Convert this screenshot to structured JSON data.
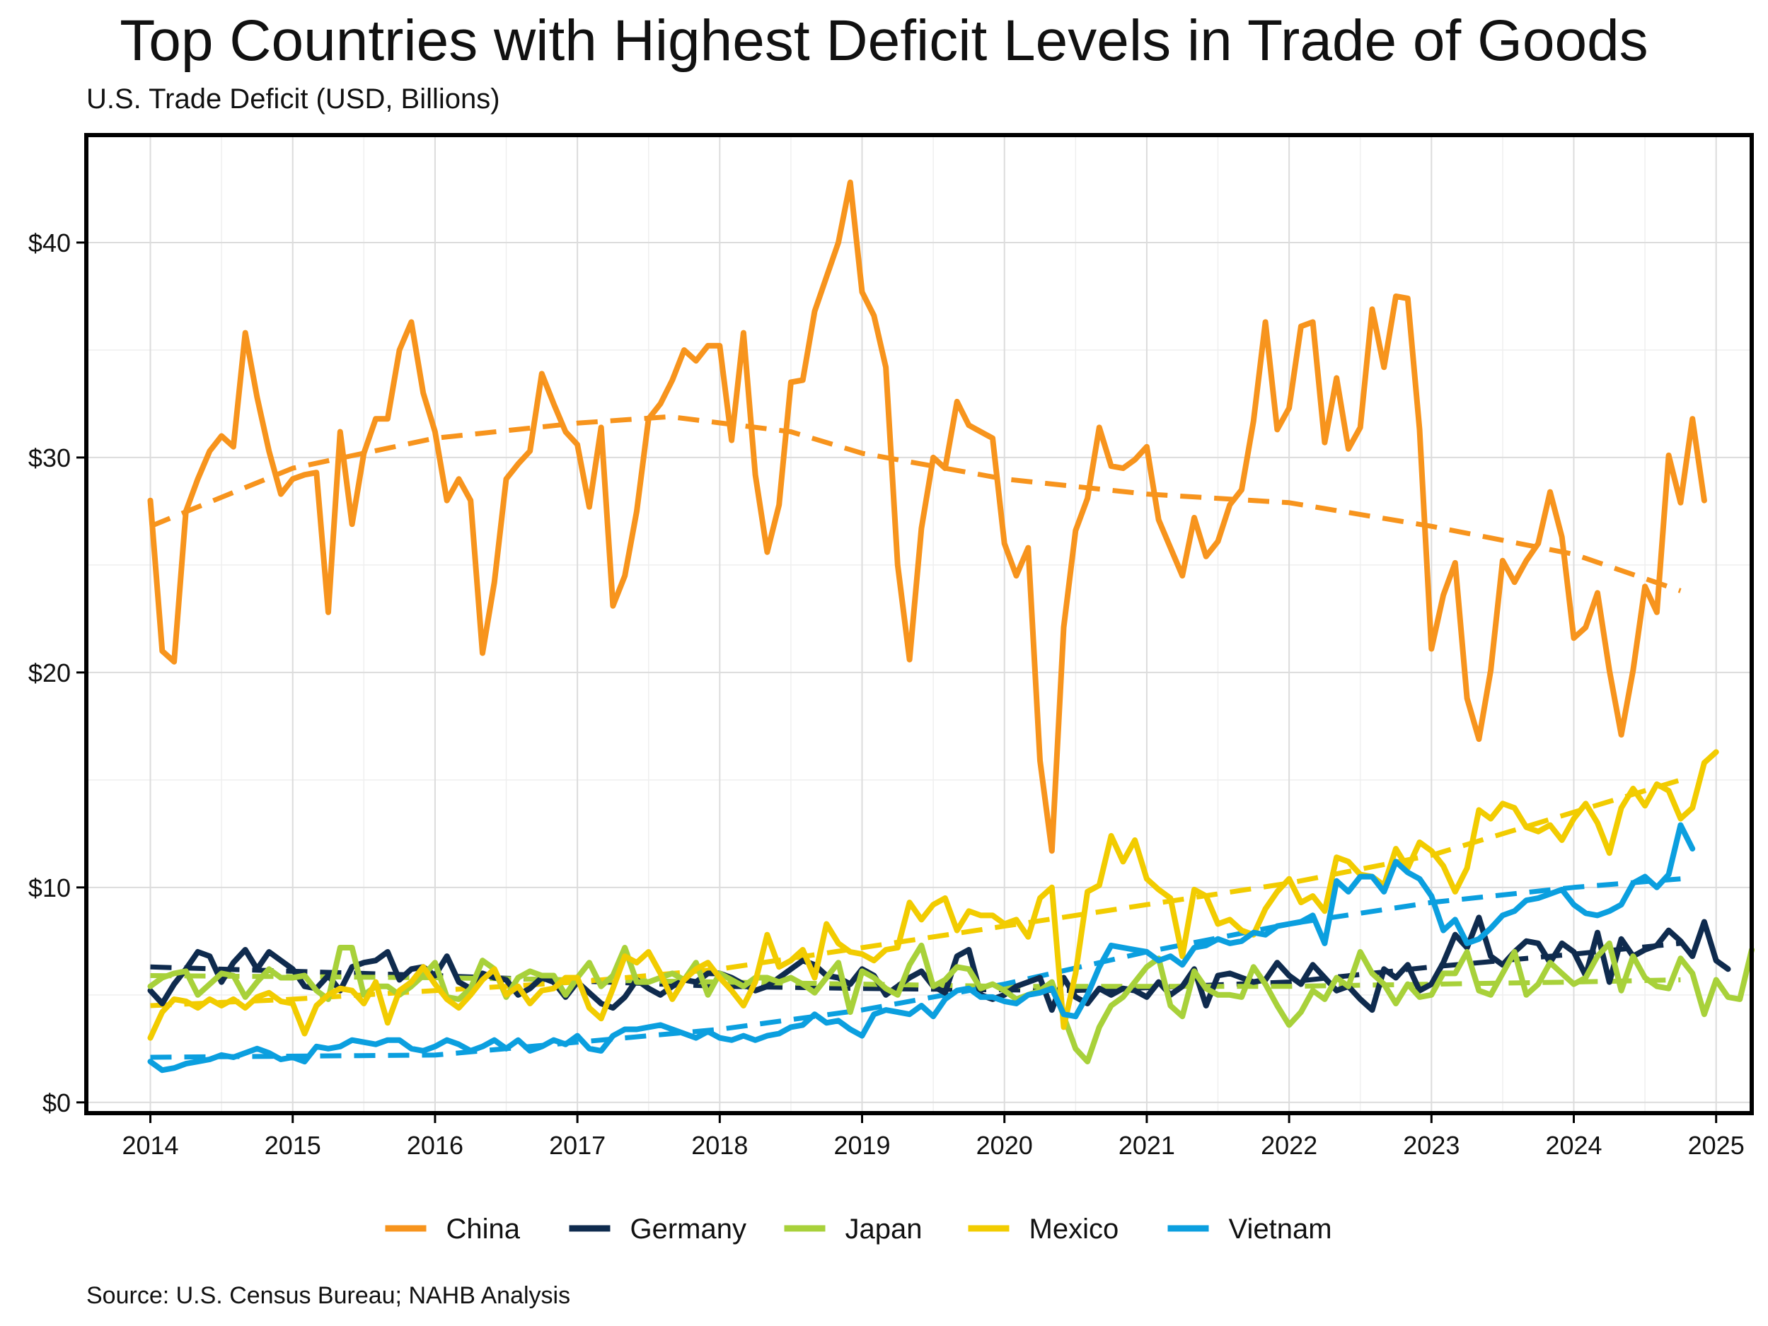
{
  "header": {
    "title": "Top Countries with Highest Deficit Levels in Trade of Goods",
    "subtitle": "U.S. Trade Deficit (USD, Billions)"
  },
  "footer": {
    "source": "Source: U.S. Census Bureau; NAHB Analysis"
  },
  "chart_data": {
    "type": "line",
    "title": "Top Countries with Highest Deficit Levels in Trade of Goods",
    "subtitle": "U.S. Trade Deficit (USD, Billions)",
    "xlim": [
      2013.55,
      2025.25
    ],
    "ylim": [
      -0.5,
      45
    ],
    "x_ticks": [
      2014,
      2015,
      2016,
      2017,
      2018,
      2019,
      2020,
      2021,
      2022,
      2023,
      2024,
      2025
    ],
    "x_tick_labels": [
      "2014",
      "2015",
      "2016",
      "2017",
      "2018",
      "2019",
      "2020",
      "2021",
      "2022",
      "2023",
      "2024",
      "2025"
    ],
    "y_ticks": [
      0,
      10,
      20,
      30,
      40
    ],
    "y_tick_labels": [
      "$0",
      "$10",
      "$20",
      "$30",
      "$40"
    ],
    "grid": true,
    "legend_position": "bottom",
    "series": [
      {
        "name": "China",
        "color": "#F7941D",
        "start": 2014,
        "step": 0.0833333,
        "values": [
          28.0,
          21.0,
          20.5,
          27.5,
          29.0,
          30.3,
          31.0,
          30.5,
          35.8,
          32.8,
          30.3,
          28.3,
          29.0,
          29.2,
          29.3,
          22.8,
          31.2,
          26.9,
          30.2,
          31.8,
          31.8,
          35.0,
          36.3,
          33.0,
          31.2,
          28.0,
          29.0,
          28.0,
          20.9,
          24.2,
          29.0,
          29.7,
          30.3,
          33.9,
          32.5,
          31.2,
          30.6,
          27.7,
          31.4,
          23.1,
          24.5,
          27.5,
          31.8,
          32.5,
          33.6,
          35.0,
          34.5,
          35.2,
          35.2,
          30.8,
          35.8,
          29.2,
          25.6,
          27.8,
          33.5,
          33.6,
          36.8,
          38.4,
          40.0,
          42.8,
          37.7,
          36.6,
          34.2,
          25.0,
          20.6,
          26.7,
          30.0,
          29.5,
          32.6,
          31.5,
          31.2,
          30.9,
          26.0,
          24.5,
          25.8,
          15.9,
          11.7,
          22.1,
          26.6,
          28.1,
          31.4,
          29.6,
          29.5,
          29.9,
          30.5,
          27.1,
          25.8,
          24.5,
          27.2,
          25.4,
          26.1,
          27.8,
          28.5,
          31.7,
          36.3,
          31.3,
          32.3,
          36.1,
          36.3,
          30.7,
          33.7,
          30.4,
          31.4,
          36.9,
          34.2,
          37.5,
          37.4,
          31.3,
          21.1,
          23.6,
          25.1,
          18.8,
          16.9,
          20.1,
          25.2,
          24.2,
          25.2,
          26.0,
          28.4,
          26.3,
          21.6,
          22.1,
          23.7,
          20.1,
          17.1,
          20.1,
          24.0,
          22.8,
          30.1,
          27.9,
          31.8,
          28.0
        ]
      },
      {
        "name": "Germany",
        "color": "#0F2B4E",
        "start": 2014,
        "step": 0.0833333,
        "values": [
          5.2,
          4.6,
          5.5,
          6.2,
          7.0,
          6.8,
          5.6,
          6.5,
          7.1,
          6.2,
          7.0,
          6.6,
          6.2,
          5.4,
          5.3,
          5.9,
          5.2,
          6.3,
          6.5,
          6.6,
          7.0,
          5.7,
          6.2,
          6.3,
          5.9,
          6.8,
          5.6,
          5.3,
          6.0,
          5.8,
          5.7,
          5.0,
          5.3,
          5.8,
          5.6,
          4.9,
          5.6,
          5.1,
          4.6,
          4.4,
          4.9,
          5.7,
          5.3,
          5.0,
          5.4,
          5.7,
          5.6,
          6.0,
          6.0,
          5.8,
          5.5,
          5.2,
          5.4,
          5.8,
          6.2,
          6.6,
          6.4,
          5.9,
          5.8,
          5.5,
          6.2,
          5.9,
          5.0,
          5.4,
          5.8,
          6.1,
          5.4,
          5.1,
          6.8,
          7.1,
          5.0,
          4.8,
          5.0,
          5.4,
          5.6,
          5.8,
          4.3,
          5.8,
          4.9,
          4.6,
          5.3,
          5.0,
          5.3,
          5.2,
          4.9,
          5.6,
          5.0,
          5.4,
          6.2,
          4.5,
          5.9,
          6.0,
          5.8,
          5.6,
          5.7,
          6.5,
          5.9,
          5.5,
          6.4,
          5.8,
          5.2,
          5.4,
          4.8,
          4.3,
          6.2,
          5.8,
          6.4,
          5.2,
          5.5,
          6.5,
          7.8,
          7.2,
          8.6,
          6.8,
          6.4,
          7.0,
          7.5,
          7.4,
          6.5,
          7.4,
          7.0,
          5.9,
          7.9,
          5.6,
          7.6,
          6.8,
          7.1,
          7.3,
          8.0,
          7.5,
          6.8,
          8.4,
          6.6,
          6.2
        ]
      },
      {
        "name": "Japan",
        "color": "#A8D13A",
        "start": 2014,
        "step": 0.0833333,
        "values": [
          5.4,
          5.8,
          6.0,
          6.1,
          5.0,
          5.5,
          6.0,
          5.9,
          4.9,
          5.6,
          6.2,
          5.8,
          5.8,
          5.9,
          5.2,
          4.8,
          7.2,
          7.2,
          5.0,
          5.4,
          5.4,
          5.0,
          5.4,
          5.9,
          6.5,
          4.9,
          4.8,
          5.3,
          6.6,
          6.2,
          4.9,
          5.8,
          6.1,
          5.9,
          5.9,
          5.0,
          5.8,
          6.5,
          5.4,
          5.9,
          7.2,
          5.6,
          5.6,
          5.8,
          6.0,
          5.7,
          6.5,
          5.0,
          6.0,
          5.7,
          5.4,
          5.8,
          5.8,
          5.6,
          5.8,
          5.5,
          5.1,
          5.8,
          6.5,
          4.2,
          6.1,
          5.8,
          5.3,
          5.0,
          6.4,
          7.3,
          5.4,
          5.7,
          6.3,
          6.2,
          5.3,
          5.5,
          5.2,
          4.8,
          5.0,
          5.2,
          5.6,
          4.0,
          2.5,
          1.9,
          3.5,
          4.5,
          4.9,
          5.6,
          6.3,
          6.7,
          4.5,
          4.0,
          6.1,
          5.3,
          5.0,
          5.0,
          4.9,
          6.3,
          5.5,
          4.5,
          3.6,
          4.2,
          5.2,
          4.8,
          5.8,
          5.4,
          7.0,
          6.0,
          5.5,
          4.6,
          5.5,
          4.9,
          5.0,
          6.0,
          6.0,
          7.0,
          5.2,
          5.0,
          6.0,
          7.0,
          5.0,
          5.5,
          6.5,
          6.0,
          5.5,
          5.8,
          6.8,
          7.4,
          5.2,
          6.8,
          5.8,
          5.4,
          5.3,
          6.7,
          6.0,
          4.1,
          5.7,
          4.9,
          4.8,
          7.1
        ]
      },
      {
        "name": "Mexico",
        "color": "#F2CC00",
        "start": 2014,
        "step": 0.0833333,
        "values": [
          3.0,
          4.2,
          4.8,
          4.7,
          4.4,
          4.8,
          4.5,
          4.8,
          4.4,
          4.9,
          5.1,
          4.7,
          4.6,
          3.2,
          4.5,
          5.0,
          5.3,
          5.2,
          4.6,
          5.6,
          3.7,
          5.2,
          5.6,
          6.3,
          5.5,
          4.8,
          4.4,
          5.0,
          5.7,
          6.2,
          5.0,
          5.4,
          4.6,
          5.2,
          5.3,
          5.8,
          5.8,
          4.4,
          3.9,
          5.3,
          6.8,
          6.5,
          7.0,
          6.0,
          4.8,
          5.7,
          6.2,
          6.5,
          5.8,
          5.2,
          4.5,
          5.6,
          7.8,
          6.3,
          6.6,
          7.1,
          5.8,
          8.3,
          7.4,
          7.0,
          6.9,
          6.6,
          7.1,
          7.2,
          9.3,
          8.5,
          9.2,
          9.5,
          8.0,
          8.9,
          8.7,
          8.7,
          8.3,
          8.5,
          7.7,
          9.5,
          10.0,
          3.5,
          6.0,
          9.8,
          10.1,
          12.4,
          11.2,
          12.2,
          10.4,
          9.9,
          9.5,
          6.8,
          9.9,
          9.6,
          8.3,
          8.5,
          8.0,
          7.8,
          9.0,
          9.8,
          10.4,
          9.3,
          9.6,
          8.9,
          11.4,
          11.2,
          10.6,
          10.5,
          10.1,
          11.8,
          10.9,
          12.1,
          11.7,
          11.0,
          9.8,
          10.9,
          13.6,
          13.2,
          13.9,
          13.7,
          12.8,
          12.6,
          12.9,
          12.2,
          13.2,
          13.9,
          13.0,
          11.6,
          13.7,
          14.6,
          13.8,
          14.8,
          14.5,
          13.2,
          13.7,
          15.8,
          16.3
        ]
      },
      {
        "name": "Vietnam",
        "color": "#0B9FDF",
        "start": 2014,
        "step": 0.0833333,
        "values": [
          1.9,
          1.5,
          1.6,
          1.8,
          1.9,
          2.0,
          2.2,
          2.1,
          2.3,
          2.5,
          2.3,
          2.0,
          2.1,
          1.9,
          2.6,
          2.5,
          2.6,
          2.9,
          2.8,
          2.7,
          2.9,
          2.9,
          2.5,
          2.4,
          2.6,
          2.9,
          2.7,
          2.4,
          2.6,
          2.9,
          2.5,
          2.9,
          2.4,
          2.6,
          2.9,
          2.7,
          3.1,
          2.5,
          2.4,
          3.1,
          3.4,
          3.4,
          3.5,
          3.6,
          3.4,
          3.2,
          3.0,
          3.3,
          3.0,
          2.9,
          3.1,
          2.9,
          3.1,
          3.2,
          3.5,
          3.6,
          4.1,
          3.7,
          3.8,
          3.4,
          3.1,
          4.1,
          4.3,
          4.2,
          4.1,
          4.5,
          4.0,
          4.8,
          5.2,
          5.3,
          4.9,
          4.9,
          4.7,
          4.6,
          5.0,
          5.1,
          5.3,
          4.1,
          4.0,
          5.0,
          6.3,
          7.3,
          7.2,
          7.1,
          7.0,
          6.6,
          6.8,
          6.4,
          7.2,
          7.3,
          7.6,
          7.4,
          7.5,
          7.9,
          7.8,
          8.2,
          8.3,
          8.4,
          8.7,
          7.4,
          10.3,
          9.8,
          10.5,
          10.5,
          9.8,
          11.2,
          10.7,
          10.4,
          9.6,
          8.0,
          8.5,
          7.4,
          7.6,
          8.1,
          8.7,
          8.9,
          9.4,
          9.5,
          9.7,
          9.9,
          9.2,
          8.8,
          8.7,
          8.9,
          9.2,
          10.2,
          10.5,
          10.0,
          10.6,
          12.9,
          11.8
        ]
      }
    ],
    "trend_lines": [
      {
        "name": "China",
        "style": "dashed",
        "x": [
          2014.0,
          2015.0,
          2016.0,
          2017.0,
          2017.65,
          2018.5,
          2019.0,
          2020.0,
          2021.0,
          2022.0,
          2023.0,
          2024.0,
          2024.75
        ],
        "y": [
          26.8,
          29.5,
          30.9,
          31.6,
          31.9,
          31.2,
          30.2,
          29.0,
          28.3,
          27.9,
          26.8,
          25.5,
          23.8
        ]
      },
      {
        "name": "Germany",
        "style": "dashed",
        "x": [
          2014.0,
          2016.0,
          2018.0,
          2019.0,
          2020.5,
          2022.0,
          2023.0,
          2024.0,
          2024.75
        ],
        "y": [
          6.3,
          5.9,
          5.4,
          5.3,
          5.2,
          5.6,
          6.3,
          6.9,
          7.4
        ]
      },
      {
        "name": "Japan",
        "style": "dashed",
        "x": [
          2014.0,
          2016.0,
          2018.0,
          2020.0,
          2022.0,
          2024.0,
          2024.75
        ],
        "y": [
          5.9,
          5.8,
          5.6,
          5.4,
          5.4,
          5.6,
          5.7
        ]
      },
      {
        "name": "Mexico",
        "style": "dashed",
        "x": [
          2014.0,
          2015.0,
          2016.0,
          2017.0,
          2018.0,
          2019.0,
          2020.0,
          2021.0,
          2022.0,
          2023.0,
          2024.0,
          2024.75
        ],
        "y": [
          4.5,
          4.8,
          5.2,
          5.6,
          6.2,
          7.2,
          8.2,
          9.2,
          10.2,
          11.5,
          13.5,
          15.0
        ]
      },
      {
        "name": "Vietnam",
        "style": "dashed",
        "x": [
          2014.0,
          2016.0,
          2017.0,
          2018.0,
          2019.0,
          2020.0,
          2021.0,
          2022.0,
          2023.0,
          2024.0,
          2024.75
        ],
        "y": [
          2.1,
          2.2,
          2.8,
          3.4,
          4.3,
          5.5,
          7.0,
          8.3,
          9.3,
          10.0,
          10.4
        ]
      }
    ]
  }
}
